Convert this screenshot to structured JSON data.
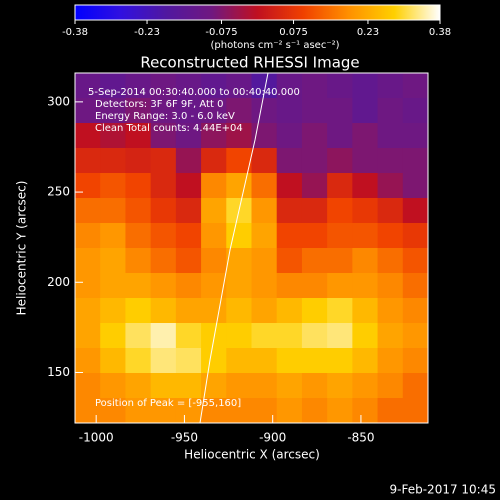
{
  "chart_data": {
    "type": "image",
    "title": "Reconstructed RHESSI Image",
    "annotations": [
      "5-Sep-2014 00:30:40.000 to 00:40:40.000",
      "Detectors: 3F 6F 9F, Att 0",
      "Energy Range: 3.0 - 6.0 keV",
      "Clean     Total counts: 4.44E+04"
    ],
    "peak_label": "Position of Peak = [-955,160]",
    "x_label": "Heliocentric X (arcsec)",
    "y_label": "Heliocentric Y (arcsec)",
    "colorbar_label": "(photons cm⁻² s⁻¹ asec⁻²)",
    "footer": "9-Feb-2017 10:45",
    "xlim": [
      -1012,
      -812
    ],
    "xticks": [
      -1000,
      -950,
      -900,
      -850
    ],
    "ylim": [
      122,
      316
    ],
    "yticks": [
      150,
      200,
      250,
      300
    ],
    "clim": [
      -0.38,
      0.38
    ],
    "cticks": [
      -0.38,
      -0.23,
      -0.075,
      0.075,
      0.23,
      0.38
    ],
    "colorscale": [
      "#0000ff",
      "#3010e0",
      "#5018a0",
      "#701880",
      "#c01020",
      "#f04000",
      "#ff9000",
      "#ffd000",
      "#ffffff"
    ],
    "z": [
      [
        -0.12,
        -0.14,
        -0.12,
        -0.1,
        -0.12,
        -0.14,
        -0.12,
        -0.18,
        -0.12,
        -0.1,
        -0.12,
        -0.14,
        -0.12,
        -0.1
      ],
      [
        -0.1,
        -0.1,
        -0.08,
        -0.1,
        -0.12,
        -0.1,
        -0.08,
        -0.1,
        -0.12,
        -0.1,
        -0.1,
        -0.14,
        -0.1,
        -0.12
      ],
      [
        0.0,
        -0.02,
        0.0,
        -0.08,
        -0.1,
        -0.06,
        -0.04,
        -0.08,
        -0.1,
        -0.08,
        -0.1,
        -0.08,
        -0.1,
        -0.1
      ],
      [
        0.05,
        0.05,
        0.04,
        0.05,
        -0.05,
        0.05,
        0.1,
        0.05,
        -0.08,
        -0.08,
        -0.06,
        -0.08,
        -0.08,
        -0.08
      ],
      [
        0.1,
        0.12,
        0.1,
        0.05,
        0.0,
        0.18,
        0.22,
        0.15,
        0.0,
        -0.05,
        0.05,
        0.0,
        -0.05,
        -0.08
      ],
      [
        0.15,
        0.15,
        0.12,
        0.08,
        0.05,
        0.22,
        0.3,
        0.2,
        0.05,
        0.05,
        0.1,
        0.08,
        0.05,
        0.0
      ],
      [
        0.18,
        0.2,
        0.15,
        0.12,
        0.1,
        0.2,
        0.28,
        0.22,
        0.1,
        0.1,
        0.12,
        0.12,
        0.1,
        0.08
      ],
      [
        0.2,
        0.22,
        0.18,
        0.15,
        0.12,
        0.18,
        0.22,
        0.2,
        0.12,
        0.15,
        0.15,
        0.18,
        0.15,
        0.12
      ],
      [
        0.2,
        0.22,
        0.22,
        0.2,
        0.18,
        0.2,
        0.22,
        0.2,
        0.18,
        0.18,
        0.2,
        0.2,
        0.18,
        0.15
      ],
      [
        0.22,
        0.25,
        0.28,
        0.25,
        0.22,
        0.22,
        0.25,
        0.22,
        0.25,
        0.28,
        0.3,
        0.25,
        0.2,
        0.18
      ],
      [
        0.22,
        0.28,
        0.32,
        0.35,
        0.3,
        0.28,
        0.28,
        0.3,
        0.3,
        0.32,
        0.33,
        0.28,
        0.22,
        0.2
      ],
      [
        0.2,
        0.25,
        0.3,
        0.33,
        0.32,
        0.28,
        0.25,
        0.25,
        0.28,
        0.28,
        0.28,
        0.25,
        0.2,
        0.18
      ],
      [
        0.18,
        0.2,
        0.22,
        0.25,
        0.25,
        0.22,
        0.2,
        0.2,
        0.22,
        0.2,
        0.22,
        0.2,
        0.18,
        0.15
      ],
      [
        0.18,
        0.18,
        0.2,
        0.2,
        0.2,
        0.18,
        0.18,
        0.18,
        0.2,
        0.18,
        0.2,
        0.18,
        0.15,
        0.15
      ]
    ]
  }
}
